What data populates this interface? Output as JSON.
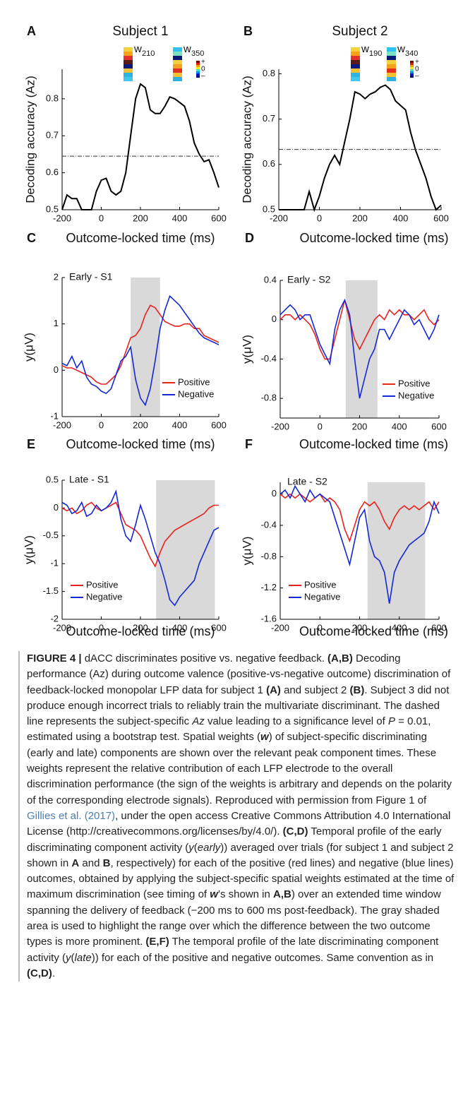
{
  "chart_data": [
    {
      "type": "line",
      "panel": "A",
      "title": "Subject 1",
      "xlabel": "Outcome-locked time (ms)",
      "ylabel": "Decoding accuracy (Az)",
      "x": [
        -200,
        -175,
        -150,
        -125,
        -100,
        -75,
        -50,
        -25,
        0,
        25,
        50,
        75,
        100,
        125,
        150,
        175,
        200,
        225,
        250,
        275,
        300,
        325,
        350,
        375,
        400,
        425,
        450,
        475,
        500,
        525,
        550,
        575,
        600
      ],
      "series": [
        {
          "color": "#000000",
          "values": [
            0.5,
            0.54,
            0.53,
            0.53,
            0.5,
            0.5,
            0.5,
            0.55,
            0.58,
            0.585,
            0.55,
            0.54,
            0.55,
            0.6,
            0.7,
            0.8,
            0.84,
            0.83,
            0.77,
            0.76,
            0.76,
            0.78,
            0.805,
            0.8,
            0.79,
            0.78,
            0.74,
            0.68,
            0.65,
            0.63,
            0.635,
            0.6,
            0.56
          ]
        }
      ],
      "threshold": 0.645,
      "xlim": [
        -200,
        600
      ],
      "ylim": [
        0.5,
        0.88
      ],
      "xticks": [
        -200,
        0,
        200,
        400,
        600
      ],
      "yticks": [
        0.5,
        0.6,
        0.7,
        0.8
      ],
      "weights": [
        {
          "label": "w",
          "subscript": "210"
        },
        {
          "label": "w",
          "subscript": "350"
        }
      ],
      "colorbar_labels": [
        "+",
        "0",
        "–"
      ]
    },
    {
      "type": "line",
      "panel": "B",
      "title": "Subject 2",
      "xlabel": "Outcome-locked time (ms)",
      "ylabel": "Decoding accuracy (Az)",
      "x": [
        -200,
        -175,
        -150,
        -125,
        -100,
        -75,
        -50,
        -25,
        0,
        25,
        50,
        75,
        100,
        125,
        150,
        175,
        200,
        225,
        250,
        275,
        300,
        325,
        350,
        375,
        400,
        425,
        450,
        475,
        500,
        525,
        550,
        575,
        600
      ],
      "series": [
        {
          "color": "#000000",
          "values": [
            0.5,
            0.5,
            0.5,
            0.5,
            0.5,
            0.5,
            0.54,
            0.5,
            0.53,
            0.57,
            0.6,
            0.62,
            0.6,
            0.65,
            0.7,
            0.76,
            0.755,
            0.745,
            0.755,
            0.76,
            0.77,
            0.775,
            0.765,
            0.74,
            0.73,
            0.72,
            0.67,
            0.63,
            0.6,
            0.57,
            0.53,
            0.5,
            0.51
          ]
        }
      ],
      "threshold": 0.633,
      "xlim": [
        -200,
        600
      ],
      "ylim": [
        0.5,
        0.81
      ],
      "xticks": [
        -200,
        0,
        200,
        400,
        600
      ],
      "yticks": [
        0.5,
        0.6,
        0.7,
        0.8
      ],
      "weights": [
        {
          "label": "w",
          "subscript": "190"
        },
        {
          "label": "w",
          "subscript": "340"
        }
      ],
      "colorbar_labels": [
        "+",
        "0",
        "–"
      ]
    },
    {
      "type": "line",
      "panel": "C",
      "title": "Early - S1",
      "xlabel": "Outcome-locked time (ms)",
      "ylabel": "y(μV)",
      "x": [
        -200,
        -175,
        -150,
        -125,
        -100,
        -75,
        -50,
        -25,
        0,
        25,
        50,
        75,
        100,
        125,
        150,
        175,
        200,
        225,
        250,
        275,
        300,
        325,
        350,
        375,
        400,
        425,
        450,
        475,
        500,
        525,
        550,
        575,
        600
      ],
      "series": [
        {
          "name": "Positive",
          "color": "#e8221f",
          "values": [
            0.1,
            0.05,
            0.05,
            0,
            -0.05,
            -0.1,
            -0.15,
            -0.25,
            -0.3,
            -0.3,
            -0.2,
            -0.1,
            0.1,
            0.4,
            0.7,
            0.75,
            0.9,
            1.2,
            1.4,
            1.35,
            1.2,
            1.05,
            1.0,
            0.95,
            0.95,
            1.0,
            1.0,
            0.9,
            0.9,
            0.75,
            0.7,
            0.65,
            0.6
          ]
        },
        {
          "name": "Negative",
          "color": "#1428d4",
          "values": [
            0.15,
            0.1,
            0.3,
            0.05,
            0.2,
            -0.15,
            -0.3,
            -0.35,
            -0.45,
            -0.5,
            -0.4,
            -0.1,
            0.2,
            0.3,
            0.5,
            -0.2,
            -0.6,
            -0.75,
            -0.4,
            0.2,
            0.9,
            1.3,
            1.6,
            1.5,
            1.4,
            1.25,
            1.1,
            0.95,
            0.8,
            0.7,
            0.65,
            0.6,
            0.55
          ]
        }
      ],
      "shade": [
        150,
        300
      ],
      "xlim": [
        -200,
        600
      ],
      "ylim": [
        -1,
        2
      ],
      "xticks": [
        -200,
        0,
        200,
        400,
        600
      ],
      "yticks": [
        -1,
        0,
        1,
        2
      ],
      "legend": "lower right"
    },
    {
      "type": "line",
      "panel": "D",
      "title": "Early - S2",
      "xlabel": "Outcome-locked time (ms)",
      "ylabel": "y(μV)",
      "x": [
        -200,
        -175,
        -150,
        -125,
        -100,
        -75,
        -50,
        -25,
        0,
        25,
        50,
        75,
        100,
        125,
        150,
        175,
        200,
        225,
        250,
        275,
        300,
        325,
        350,
        375,
        400,
        425,
        450,
        475,
        500,
        525,
        550,
        575,
        600
      ],
      "series": [
        {
          "name": "Positive",
          "color": "#e8221f",
          "values": [
            0,
            0.05,
            0.05,
            0,
            0.05,
            0,
            -0.05,
            -0.15,
            -0.3,
            -0.4,
            -0.4,
            -0.2,
            0,
            0.2,
            0,
            -0.2,
            -0.3,
            -0.2,
            -0.1,
            0,
            0.05,
            0,
            0.1,
            0.05,
            0.1,
            0.05,
            0.05,
            0,
            0.05,
            0.1,
            0,
            -0.05,
            0
          ]
        },
        {
          "name": "Negative",
          "color": "#1428d4",
          "values": [
            0.05,
            0.1,
            0.15,
            0.1,
            0,
            0.05,
            0.05,
            -0.1,
            -0.25,
            -0.35,
            -0.45,
            -0.1,
            0.1,
            0.2,
            0.05,
            -0.4,
            -0.8,
            -0.6,
            -0.4,
            -0.3,
            -0.1,
            -0.1,
            -0.2,
            -0.1,
            0,
            0.1,
            0.05,
            -0.05,
            0,
            -0.1,
            -0.2,
            -0.1,
            0.05
          ]
        }
      ],
      "shade": [
        130,
        290
      ],
      "xlim": [
        -200,
        600
      ],
      "ylim": [
        -1,
        0.4
      ],
      "xticks": [
        -200,
        0,
        200,
        400,
        600
      ],
      "yticks": [
        -0.8,
        -0.4,
        0,
        0.4
      ],
      "legend": "lower right"
    },
    {
      "type": "line",
      "panel": "E",
      "title": "Late - S1",
      "xlabel": "Outcome-locked time (ms)",
      "ylabel": "y(μV)",
      "x": [
        -200,
        -175,
        -150,
        -125,
        -100,
        -75,
        -50,
        -25,
        0,
        25,
        50,
        75,
        100,
        125,
        150,
        175,
        200,
        225,
        250,
        275,
        300,
        325,
        350,
        375,
        400,
        425,
        450,
        475,
        500,
        525,
        550,
        575,
        600
      ],
      "series": [
        {
          "name": "Positive",
          "color": "#e8221f",
          "values": [
            0,
            -0.05,
            0,
            -0.1,
            -0.05,
            0.05,
            0.1,
            0,
            -0.05,
            0,
            0.05,
            0.1,
            -0.1,
            -0.3,
            -0.35,
            -0.4,
            -0.5,
            -0.7,
            -0.9,
            -1.05,
            -0.8,
            -0.6,
            -0.5,
            -0.4,
            -0.35,
            -0.3,
            -0.25,
            -0.2,
            -0.15,
            -0.1,
            0,
            0.05,
            0.05
          ]
        },
        {
          "name": "Negative",
          "color": "#1428d4",
          "values": [
            0.1,
            0.05,
            -0.1,
            -0.05,
            0.1,
            -0.15,
            -0.1,
            0.05,
            -0.05,
            0,
            0.1,
            0.3,
            -0.2,
            -0.5,
            -0.6,
            -0.3,
            0.05,
            -0.2,
            -0.5,
            -0.8,
            -1.0,
            -1.3,
            -1.65,
            -1.75,
            -1.6,
            -1.5,
            -1.4,
            -1.3,
            -1.0,
            -0.8,
            -0.6,
            -0.4,
            -0.35
          ]
        }
      ],
      "shade": [
        280,
        580
      ],
      "xlim": [
        -200,
        600
      ],
      "ylim": [
        -2,
        0.5
      ],
      "xticks": [
        -200,
        0,
        200,
        400,
        600
      ],
      "yticks": [
        -2,
        -1.5,
        -1,
        -0.5,
        0,
        0.5
      ],
      "legend": "lower left"
    },
    {
      "type": "line",
      "panel": "F",
      "title": "Late - S2",
      "xlabel": "Outcome-locked time (ms)",
      "ylabel": "y(μV)",
      "x": [
        -200,
        -175,
        -150,
        -125,
        -100,
        -75,
        -50,
        -25,
        0,
        25,
        50,
        75,
        100,
        125,
        150,
        175,
        200,
        225,
        250,
        275,
        300,
        325,
        350,
        375,
        400,
        425,
        450,
        475,
        500,
        525,
        550,
        575,
        600
      ],
      "series": [
        {
          "name": "Positive",
          "color": "#e8221f",
          "values": [
            0,
            -0.05,
            0,
            -0.05,
            0,
            -0.05,
            -0.1,
            -0.05,
            0,
            -0.1,
            -0.05,
            -0.1,
            -0.2,
            -0.45,
            -0.6,
            -0.4,
            -0.2,
            -0.1,
            -0.15,
            -0.1,
            -0.2,
            -0.35,
            -0.45,
            -0.3,
            -0.2,
            -0.15,
            -0.2,
            -0.15,
            -0.2,
            -0.15,
            -0.1,
            -0.2,
            -0.1
          ]
        },
        {
          "name": "Negative",
          "color": "#1428d4",
          "values": [
            0,
            0.05,
            -0.05,
            0.1,
            0,
            -0.1,
            0.05,
            -0.05,
            0,
            -0.05,
            -0.1,
            -0.3,
            -0.5,
            -0.7,
            -0.9,
            -0.6,
            -0.3,
            -0.2,
            -0.6,
            -0.8,
            -0.85,
            -1.0,
            -1.4,
            -1.0,
            -0.85,
            -0.75,
            -0.65,
            -0.6,
            -0.55,
            -0.5,
            -0.35,
            -0.1,
            -0.25
          ]
        }
      ],
      "shade": [
        240,
        530
      ],
      "xlim": [
        -200,
        600
      ],
      "ylim": [
        -1.6,
        0.15
      ],
      "xticks": [
        -200,
        0,
        200,
        400,
        600
      ],
      "yticks": [
        -1.6,
        -1.2,
        -0.8,
        -0.4,
        0
      ],
      "legend": "lower left"
    }
  ],
  "caption": {
    "label": "FIGURE 4 |",
    "title": " dACC discriminates positive vs. negative feedback.",
    "runs": [
      {
        "text": "(A,B)",
        "style": "bold"
      },
      {
        "text": " Decoding performance (Az) during outcome valence (positive-vs-negative outcome) discrimination of feedback-locked monopolar LFP data for subject 1 ",
        "style": "plain"
      },
      {
        "text": "(A)",
        "style": "bold"
      },
      {
        "text": " and subject 2 ",
        "style": "plain"
      },
      {
        "text": "(B)",
        "style": "bold"
      },
      {
        "text": ". Subject 3 did not produce enough incorrect trials to reliably train the multivariate discriminant. The dashed line represents the subject-specific ",
        "style": "plain"
      },
      {
        "text": "Az",
        "style": "italic"
      },
      {
        "text": " value leading to a significance level of ",
        "style": "plain"
      },
      {
        "text": "P",
        "style": "italic"
      },
      {
        "text": " = 0.01, estimated using a bootstrap test. Spatial weights (",
        "style": "plain"
      },
      {
        "text": "w",
        "style": "bold-italic"
      },
      {
        "text": ") of subject-specific discriminating (early and late) components are shown over the relevant peak component times. These weights represent the relative contribution of each LFP electrode to the overall discrimination performance (the sign of the weights is arbitrary and depends on the polarity of the corresponding electrode signals). Reproduced with permission from Figure 1 of ",
        "style": "plain"
      },
      {
        "text": "Gillies et al. (2017)",
        "style": "link"
      },
      {
        "text": ", under the open access Creative Commons Attribution 4.0 International License (http://creativecommons.org/licenses/by/4.0/). ",
        "style": "plain"
      },
      {
        "text": "(C,D)",
        "style": "bold"
      },
      {
        "text": " Temporal profile of the early discriminating component activity (",
        "style": "plain"
      },
      {
        "text": "y",
        "style": "italic"
      },
      {
        "text": "(",
        "style": "plain"
      },
      {
        "text": "early",
        "style": "italic"
      },
      {
        "text": ")) averaged over trials (for subject 1 and subject 2 shown in ",
        "style": "plain"
      },
      {
        "text": "A",
        "style": "bold"
      },
      {
        "text": " and ",
        "style": "plain"
      },
      {
        "text": "B",
        "style": "bold"
      },
      {
        "text": ", respectively) for each of the positive (red lines) and negative (blue lines) outcomes, obtained by applying the subject-specific spatial weights estimated at the time of maximum discrimination (see timing of ",
        "style": "plain"
      },
      {
        "text": "w",
        "style": "bold-italic"
      },
      {
        "text": "’s shown in ",
        "style": "plain"
      },
      {
        "text": "A,B",
        "style": "bold"
      },
      {
        "text": ") over an extended time window spanning the delivery of feedback (−200 ms to 600 ms post-feedback). The gray shaded area is used to highlight the range over which the difference between the two outcome types is more prominent. ",
        "style": "plain"
      },
      {
        "text": "(E,F)",
        "style": "bold"
      },
      {
        "text": " The temporal profile of the late discriminating component activity (",
        "style": "plain"
      },
      {
        "text": "y",
        "style": "italic"
      },
      {
        "text": "(",
        "style": "plain"
      },
      {
        "text": "late",
        "style": "italic"
      },
      {
        "text": ")) for each of the positive and negative outcomes. Same convention as in ",
        "style": "plain"
      },
      {
        "text": "(C,D)",
        "style": "bold"
      },
      {
        "text": ".",
        "style": "plain"
      }
    ]
  }
}
